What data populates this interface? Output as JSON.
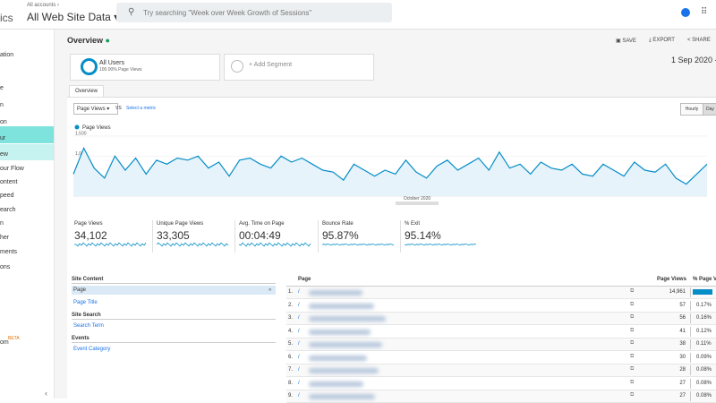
{
  "topbar": {
    "app": "ics",
    "breadcrumb": "All accounts ›",
    "view": "All Web Site Data",
    "search": "Try searching \"Week over Week Growth of Sessions\""
  },
  "sidebar": {
    "items": [
      "ation",
      "e",
      "n",
      "on",
      "ur",
      "ew",
      "our Flow",
      "ontent",
      "peed",
      "earch",
      "n",
      "her",
      "ments",
      "ons",
      "om"
    ],
    "beta": "BETA"
  },
  "header": {
    "title": "Overview",
    "save": "SAVE",
    "export": "EXPORT",
    "share": "SHARE",
    "date": "1 Sep 2020 - 3"
  },
  "segments": {
    "name": "All Users",
    "detail": "100.00% Page Views",
    "add": "+ Add Segment"
  },
  "tab": "Overview",
  "controls": {
    "metric": "Page Views",
    "vs": "VS",
    "select": "Select a metric",
    "hourly": "Hourly",
    "day": "Day"
  },
  "chart_data": {
    "type": "line",
    "x_label": "October 2020",
    "ylim": [
      0,
      1600
    ],
    "yticks": [
      {
        "value": 1500,
        "label": "1,500"
      },
      {
        "value": 1000,
        "label": "1,000"
      },
      500
    ],
    "series": [
      {
        "name": "Page Views",
        "color": "#058dc7",
        "values": [
          550,
          1200,
          700,
          450,
          1000,
          650,
          950,
          550,
          900,
          800,
          950,
          900,
          1000,
          700,
          850,
          500,
          900,
          950,
          800,
          700,
          1000,
          850,
          950,
          800,
          650,
          600,
          400,
          800,
          650,
          500,
          650,
          550,
          900,
          600,
          450,
          750,
          900,
          650,
          800,
          950,
          650,
          1100,
          700,
          800,
          550,
          850,
          700,
          650,
          800,
          550,
          500,
          800,
          650,
          500,
          850,
          650,
          600,
          800,
          450,
          300,
          550,
          800
        ]
      }
    ]
  },
  "metrics": [
    {
      "label": "Page Views",
      "value": "34,102"
    },
    {
      "label": "Unique Page Views",
      "value": "33,305"
    },
    {
      "label": "Avg. Time on Page",
      "value": "00:04:49"
    },
    {
      "label": "Bounce Rate",
      "value": "95.87%"
    },
    {
      "label": "% Exit",
      "value": "95.14%"
    }
  ],
  "left_table": {
    "groups": [
      {
        "title": "Site Content",
        "items": [
          "Page",
          "Page Title"
        ]
      },
      {
        "title": "Site Search",
        "items": [
          "Search Term"
        ]
      },
      {
        "title": "Events",
        "items": [
          "Event Category"
        ]
      }
    ],
    "arrow": "»"
  },
  "right_table": {
    "headers": [
      "Page",
      "Page Views",
      "% Page V"
    ],
    "rows": [
      {
        "num": "1.",
        "page": "/",
        "views": "14,961",
        "share": 43.87
      },
      {
        "num": "2.",
        "page": "/",
        "views": "57",
        "pct": "0.17%"
      },
      {
        "num": "3.",
        "page": "/",
        "views": "56",
        "pct": "0.16%"
      },
      {
        "num": "4.",
        "page": "/",
        "views": "41",
        "pct": "0.12%"
      },
      {
        "num": "5.",
        "page": "/",
        "views": "38",
        "pct": "0.11%"
      },
      {
        "num": "6.",
        "page": "/",
        "views": "30",
        "pct": "0.09%"
      },
      {
        "num": "7.",
        "page": "/",
        "views": "28",
        "pct": "0.08%"
      },
      {
        "num": "8.",
        "page": "/",
        "views": "27",
        "pct": "0.08%"
      },
      {
        "num": "9.",
        "page": "/",
        "views": "27",
        "pct": "0.08%"
      }
    ]
  }
}
